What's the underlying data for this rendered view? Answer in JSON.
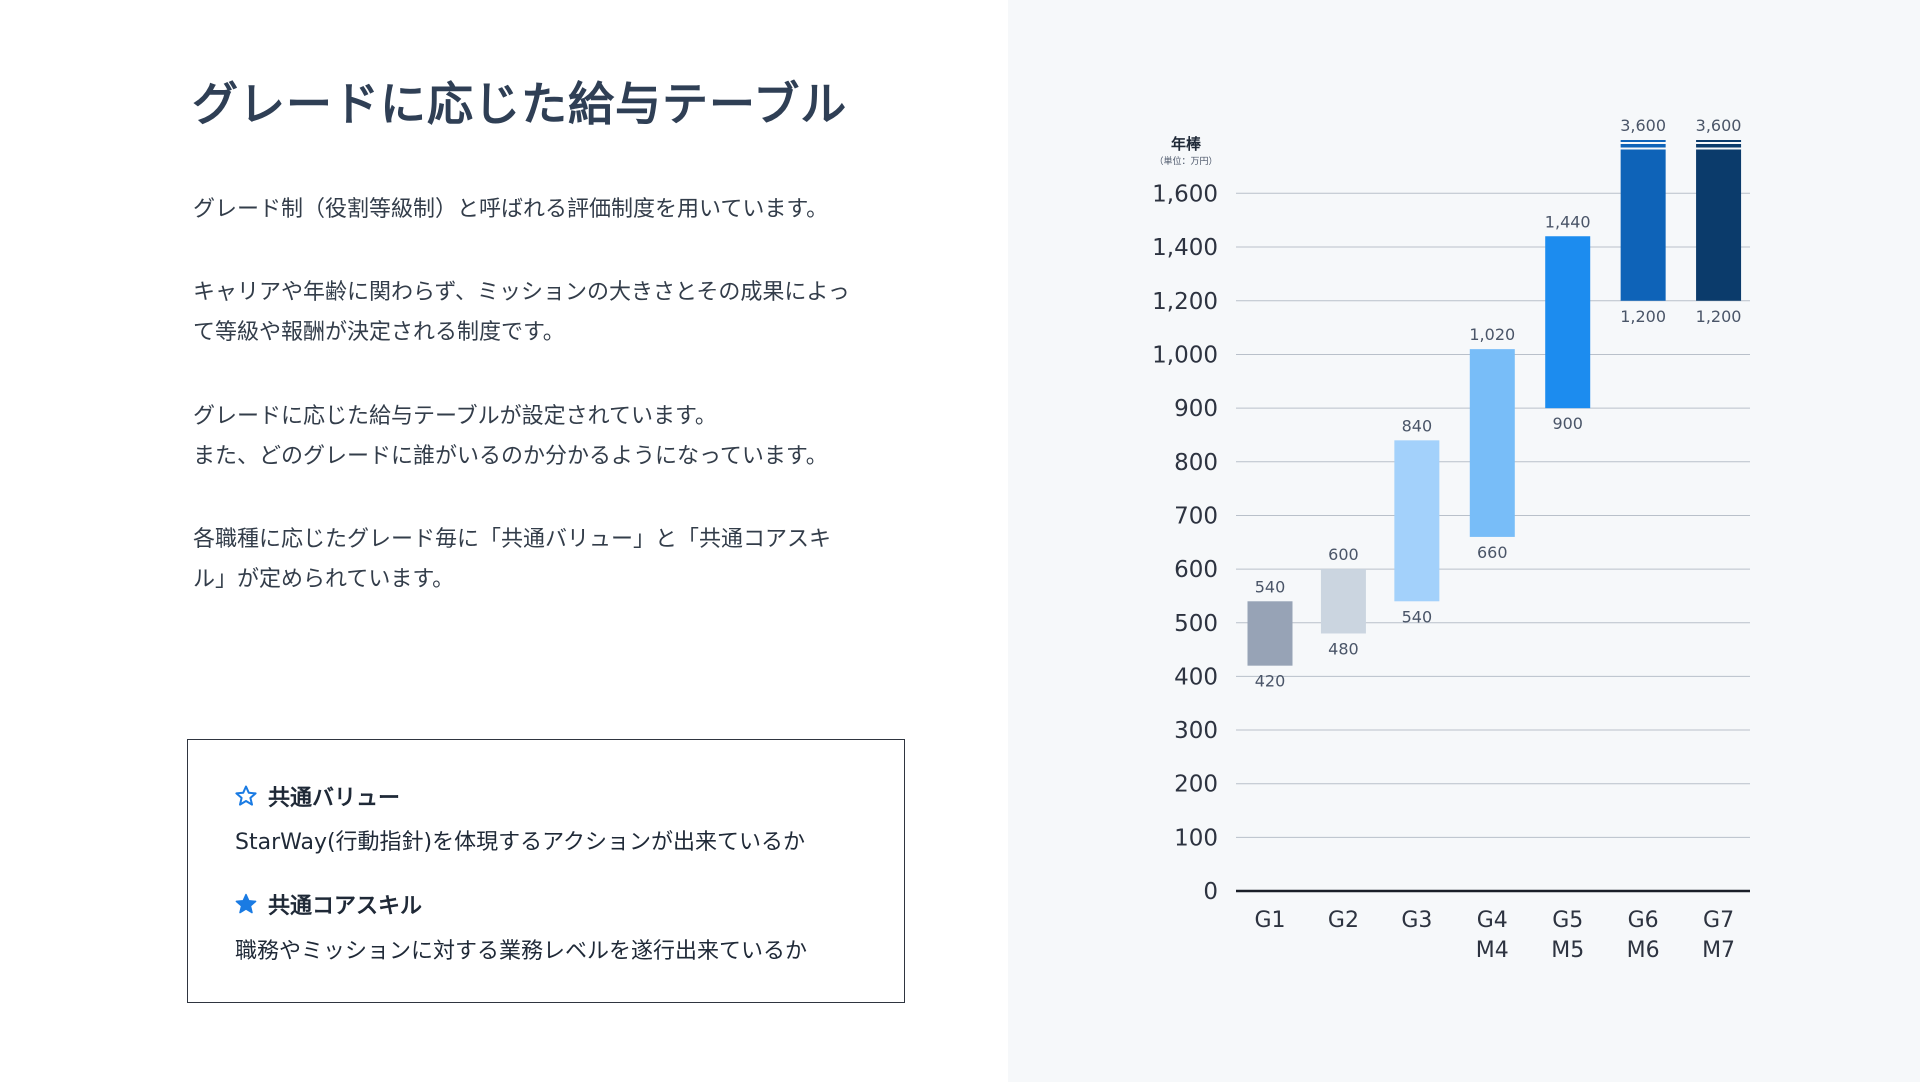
{
  "left": {
    "title": "グレードに応じた給与テーブル",
    "paragraphs": [
      [
        "グレード制（役割等級制）と呼ばれる評価制度を用いています。"
      ],
      [
        "キャリアや年齢に関わらず、ミッションの大きさとその成果によっ",
        "て等級や報酬が決定される制度です。"
      ],
      [
        "グレードに応じた給与テーブルが設定されています。",
        "また、どのグレードに誰がいるのか分かるようになっています。"
      ],
      [
        "各職種に応じたグレード毎に「共通バリュー」と「共通コアスキ",
        "ル」が定められています。"
      ]
    ],
    "box": {
      "value_heading": "共通バリュー",
      "value_desc": "StarWay(行動指針)を体現するアクションが出来ているか",
      "skill_heading": "共通コアスキル",
      "skill_desc": "職務やミッションに対する業務レベルを遂行出来ているか"
    }
  },
  "colors": {
    "star_accent": "#1a7be3",
    "bars": [
      "#97a3b6",
      "#cbd5e0",
      "#a3d1fb",
      "#78bdf8",
      "#1c8cef",
      "#0e63b8",
      "#0b3b6b"
    ]
  },
  "icons": {
    "value_icon": "star-outline-icon",
    "skill_icon": "star-filled-icon"
  },
  "chart_data": {
    "type": "bar",
    "subtype": "floating-range",
    "ylabel": "年棒",
    "yunit": "（単位：万円）",
    "yticks": [
      "0",
      "100",
      "200",
      "300",
      "400",
      "500",
      "600",
      "700",
      "800",
      "900",
      "1,000",
      "1,200",
      "1,400",
      "1,600"
    ],
    "axis_break": true,
    "grid": true,
    "categories": [
      [
        "G1"
      ],
      [
        "G2"
      ],
      [
        "G3"
      ],
      [
        "G4",
        "M4"
      ],
      [
        "G5",
        "M5"
      ],
      [
        "G6",
        "M6"
      ],
      [
        "G7",
        "M7"
      ]
    ],
    "ranges": [
      {
        "min": 420,
        "max": 540,
        "min_label": "420",
        "max_label": "540"
      },
      {
        "min": 480,
        "max": 600,
        "min_label": "480",
        "max_label": "600"
      },
      {
        "min": 540,
        "max": 840,
        "min_label": "540",
        "max_label": "840"
      },
      {
        "min": 660,
        "max": 1020,
        "min_label": "660",
        "max_label": "1,020"
      },
      {
        "min": 900,
        "max": 1440,
        "min_label": "900",
        "max_label": "1,440"
      },
      {
        "min": 1200,
        "max": 3600,
        "min_label": "1,200",
        "max_label": "3,600",
        "truncated": true
      },
      {
        "min": 1200,
        "max": 3600,
        "min_label": "1,200",
        "max_label": "3,600",
        "truncated": true
      }
    ]
  }
}
